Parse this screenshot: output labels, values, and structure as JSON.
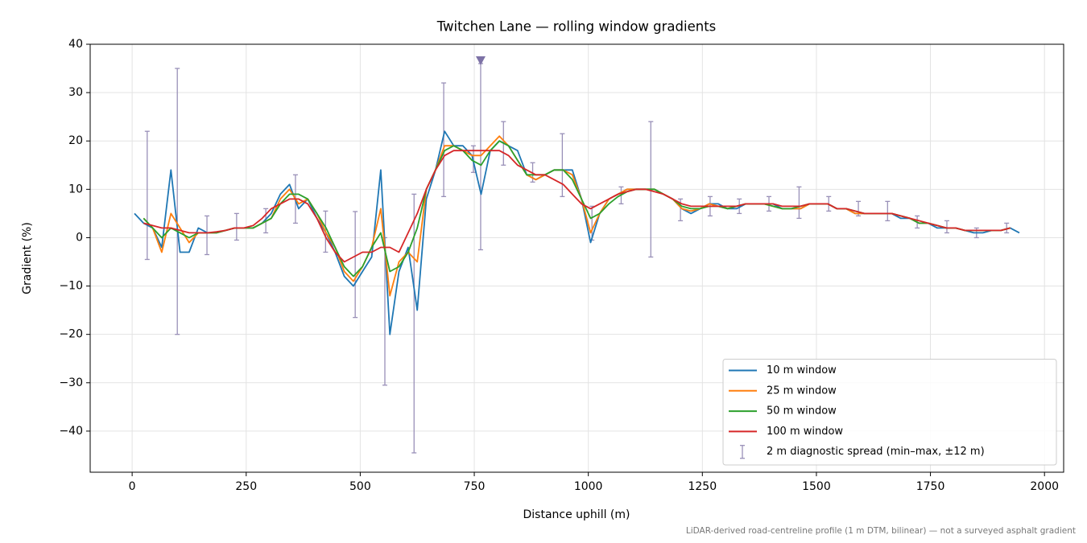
{
  "chart_data": {
    "type": "line",
    "title": "Twitchen Lane — rolling window gradients",
    "xlabel": "Distance uphill (m)",
    "ylabel": "Gradient (%)",
    "footnote": "LiDAR-derived road-centreline profile (1 m DTM, bilinear) — not a surveyed asphalt gradient",
    "xlim": [
      -92,
      2042
    ],
    "ylim": [
      -48.5,
      40
    ],
    "xticks": [
      0,
      250,
      500,
      750,
      1000,
      1250,
      1500,
      1750,
      2000
    ],
    "yticks": [
      {
        "value": -40,
        "label": "−40"
      },
      {
        "value": -30,
        "label": "−30"
      },
      {
        "value": -20,
        "label": "−20"
      },
      {
        "value": -10,
        "label": "−10"
      },
      0,
      10,
      20,
      30,
      40
    ],
    "grid": true,
    "legend": "lower right",
    "x": [
      5,
      25,
      45,
      65,
      85,
      105,
      125,
      145,
      165,
      185,
      205,
      225,
      245,
      265,
      285,
      305,
      325,
      345,
      365,
      385,
      405,
      425,
      445,
      465,
      485,
      505,
      525,
      545,
      565,
      585,
      605,
      625,
      645,
      665,
      685,
      705,
      725,
      745,
      765,
      785,
      805,
      825,
      845,
      865,
      885,
      905,
      925,
      945,
      965,
      985,
      1005,
      1025,
      1045,
      1065,
      1085,
      1105,
      1125,
      1145,
      1165,
      1185,
      1205,
      1225,
      1245,
      1265,
      1285,
      1305,
      1325,
      1345,
      1365,
      1385,
      1405,
      1425,
      1445,
      1465,
      1485,
      1505,
      1525,
      1545,
      1565,
      1585,
      1605,
      1625,
      1645,
      1665,
      1685,
      1705,
      1725,
      1745,
      1765,
      1785,
      1805,
      1825,
      1845,
      1865,
      1885,
      1905,
      1925,
      1945
    ],
    "series": [
      {
        "name": "10 m window",
        "color": "#1f77b4",
        "values": [
          5,
          3,
          2,
          -2,
          14,
          -3,
          -3,
          2,
          1,
          1,
          1.5,
          2,
          2,
          2,
          3,
          5,
          9,
          11,
          6,
          8,
          4,
          1,
          -3,
          -8,
          -10,
          -7,
          -4,
          14,
          -20,
          -7,
          -2,
          -15,
          8,
          14,
          22,
          19,
          19,
          17,
          9,
          18,
          20,
          19,
          18,
          13,
          12,
          13,
          14,
          14,
          14,
          8,
          -1,
          5,
          8,
          9,
          10,
          10,
          10,
          10,
          9,
          8,
          6,
          5,
          6,
          7,
          7,
          6,
          6,
          7,
          7,
          7,
          7,
          6,
          6,
          6,
          7,
          7,
          7,
          6,
          6,
          5,
          5,
          5,
          5,
          5,
          4,
          4,
          3,
          3,
          2,
          2,
          2,
          1.5,
          1,
          1,
          1.5,
          1.5,
          2,
          1
        ]
      },
      {
        "name": "25 m window",
        "color": "#ff7f0e",
        "values": [
          null,
          4,
          2,
          -3,
          5,
          2,
          -1,
          1,
          1,
          1,
          1.5,
          2,
          2,
          2,
          3,
          4,
          8,
          10,
          7,
          8,
          5,
          1,
          -2,
          -7,
          -9,
          -6,
          -2,
          6,
          -12,
          -5,
          -3,
          -5,
          10,
          14,
          19,
          19,
          18,
          17,
          17,
          19,
          21,
          19,
          16,
          13,
          12,
          13,
          14,
          14,
          13,
          8,
          1,
          5,
          8,
          9,
          10,
          10,
          10,
          10,
          9,
          8,
          6,
          5.5,
          6,
          7,
          6.5,
          6,
          6.5,
          7,
          7,
          7,
          6.5,
          6,
          6,
          6,
          7,
          7,
          7,
          6,
          6,
          5,
          5,
          5,
          5,
          5,
          4.5,
          4,
          3,
          3,
          2.5,
          2,
          2,
          1.5,
          1.5,
          1.5,
          1.5,
          1.5,
          2,
          null
        ]
      },
      {
        "name": "50 m window",
        "color": "#2ca02c",
        "values": [
          null,
          4,
          2,
          0,
          2,
          1,
          0,
          1,
          1,
          1,
          1.5,
          2,
          2,
          2,
          3,
          4,
          7,
          9,
          9,
          8,
          5,
          2,
          -2,
          -6,
          -8,
          -6,
          -2,
          1,
          -7,
          -6,
          -3,
          2,
          10,
          14,
          18,
          19,
          18,
          16,
          15,
          18,
          20,
          19,
          16,
          13,
          13,
          13,
          14,
          14,
          12,
          8,
          4,
          5,
          7,
          8.5,
          9.5,
          10,
          10,
          10,
          9,
          8,
          6.5,
          6,
          6,
          6.5,
          6.5,
          6,
          6.5,
          7,
          7,
          7,
          6.5,
          6,
          6,
          6.5,
          7,
          7,
          7,
          6,
          6,
          5.5,
          5,
          5,
          5,
          5,
          4.5,
          4,
          3,
          3,
          2.5,
          2,
          2,
          1.5,
          1.5,
          1.5,
          1.5,
          1.5,
          2,
          null
        ]
      },
      {
        "name": "100 m window",
        "color": "#d62728",
        "values": [
          null,
          3,
          2.5,
          2,
          2,
          1.5,
          1,
          1,
          1,
          1.2,
          1.5,
          2,
          2,
          2.5,
          4,
          6,
          7,
          8,
          8,
          7,
          4,
          0,
          -3,
          -5,
          -4,
          -3,
          -3,
          -2,
          -2,
          -3,
          1,
          5,
          10,
          14,
          17,
          18,
          18,
          18,
          18,
          18,
          18,
          17,
          15,
          14,
          13,
          13,
          12,
          11,
          9,
          7,
          6,
          7,
          8,
          9,
          9.5,
          10,
          10,
          9.5,
          9,
          8,
          7,
          6.5,
          6.5,
          6.5,
          6.5,
          6.5,
          6.5,
          7,
          7,
          7,
          7,
          6.5,
          6.5,
          6.5,
          7,
          7,
          7,
          6,
          6,
          5.5,
          5,
          5,
          5,
          5,
          4.5,
          4,
          3.5,
          3,
          2.5,
          2,
          2,
          1.5,
          1.5,
          1.5,
          1.5,
          1.5,
          2,
          null
        ]
      }
    ],
    "errorbars": {
      "name": "2 m diagnostic spread (min–max, ±12 m)",
      "color": "#9990b8",
      "x": [
        33,
        99,
        164,
        229,
        293,
        358,
        424,
        489,
        554,
        618,
        683,
        748,
        764,
        814,
        878,
        943,
        1008,
        1072,
        1137,
        1202,
        1267,
        1331,
        1396,
        1462,
        1527,
        1592,
        1656,
        1721,
        1786,
        1851,
        1917
      ],
      "low": [
        -4.5,
        -20,
        -3.5,
        -0.5,
        1,
        3,
        -3,
        -16.5,
        -30.5,
        -44.5,
        8.5,
        13.5,
        -2.5,
        15,
        11.5,
        8.5,
        -0.5,
        7,
        -4,
        3.5,
        4.5,
        5,
        5.5,
        4,
        5.5,
        4.5,
        3.5,
        2,
        1,
        0,
        1
      ],
      "high": [
        22,
        35,
        4.5,
        5,
        6,
        13,
        5.5,
        5.4,
        0,
        9,
        32,
        19,
        36,
        24,
        15.5,
        21.5,
        6.5,
        10.5,
        24,
        8,
        8.5,
        8,
        8.5,
        10.5,
        8.5,
        7.5,
        7.5,
        4.5,
        3.5,
        2,
        3
      ]
    },
    "markers": [
      {
        "x": 764,
        "y": 36.5,
        "color": "#7d72a6"
      }
    ]
  }
}
